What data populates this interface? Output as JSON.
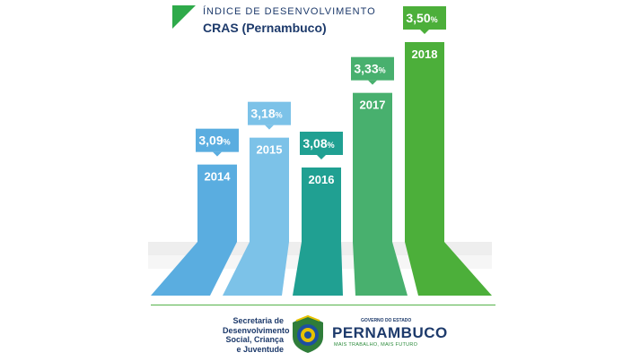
{
  "header": {
    "subtitle": "ÍNDICE DE DESENVOLVIMENTO",
    "title": "CRAS (Pernambuco)",
    "accent_color": "#2eaa4a",
    "text_color": "#1d3a6b"
  },
  "chart_data": {
    "type": "bar",
    "title": "CRAS (Pernambuco)",
    "subtitle": "ÍNDICE DE DESENVOLVIMENTO",
    "categories": [
      "2014",
      "2015",
      "2016",
      "2017",
      "2018"
    ],
    "values": [
      3.09,
      3.18,
      3.08,
      3.33,
      3.5
    ],
    "value_labels": [
      "3,09%",
      "3,18%",
      "3,08%",
      "3,33%",
      "3,50%"
    ],
    "unit": "%",
    "colors": [
      "#5aade0",
      "#7cc2e8",
      "#20a092",
      "#48b06e",
      "#4caf3a"
    ],
    "xlabel": "",
    "ylabel": "",
    "grid": false,
    "legend": "none"
  },
  "footer": {
    "secretaria_lines": [
      "Secretaria de",
      "Desenvolvimento",
      "Social, Criança",
      "e Juventude"
    ],
    "gov_label": "GOVERNO DO ESTADO",
    "state_name": "PERNAMBUCO",
    "motto": "MAIS TRABALHO, MAIS FUTURO",
    "seal_icon": "pernambuco-seal-icon",
    "rule_color": "#55b24a"
  }
}
